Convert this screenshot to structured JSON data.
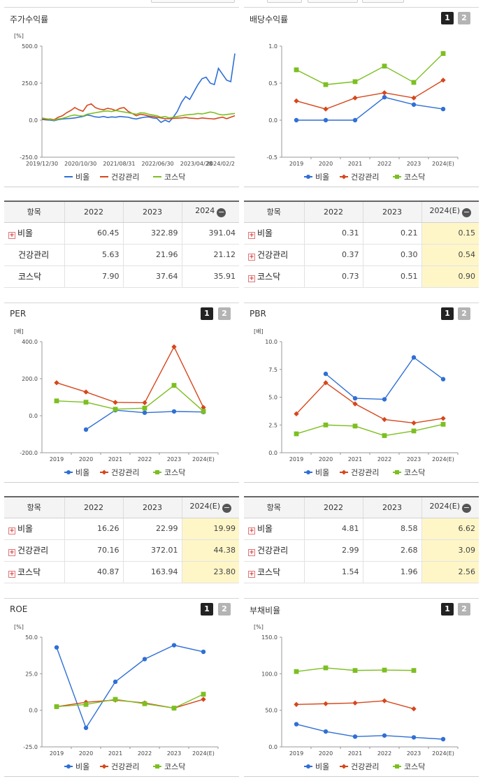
{
  "panels": [
    {
      "id": "stock-return",
      "title": "주가수익률",
      "toggles": [],
      "unit": "[%]"
    },
    {
      "id": "dividend",
      "title": "배당수익률",
      "toggles": [
        "1",
        "2"
      ],
      "unit": ""
    },
    {
      "id": "per",
      "title": "PER",
      "toggles": [
        "1",
        "2"
      ],
      "unit": "[배]"
    },
    {
      "id": "pbr",
      "title": "PBR",
      "toggles": [
        "1",
        "2"
      ],
      "unit": "[배]"
    },
    {
      "id": "roe",
      "title": "ROE",
      "toggles": [
        "1",
        "2"
      ],
      "unit": "[%]"
    },
    {
      "id": "debt",
      "title": "부채비율",
      "toggles": [
        "1",
        "2"
      ],
      "unit": "[%]"
    }
  ],
  "legend": [
    "비올",
    "건강관리",
    "코스닥"
  ],
  "colors": {
    "biol": "#2f6fd6",
    "health": "#d6471c",
    "kosdaq": "#7cbf21"
  },
  "tables": [
    {
      "id": "t1",
      "head": [
        "항목",
        "2022",
        "2023",
        "2024"
      ],
      "rows": [
        [
          "비올",
          "60.45",
          "322.89",
          "391.04"
        ],
        [
          "건강관리",
          "5.63",
          "21.96",
          "21.12"
        ],
        [
          "코스닥",
          "7.90",
          "37.64",
          "35.91"
        ]
      ],
      "plus": [
        true,
        false,
        false
      ],
      "highlight": false
    },
    {
      "id": "t2",
      "head": [
        "항목",
        "2022",
        "2023",
        "2024(E)"
      ],
      "rows": [
        [
          "비올",
          "0.31",
          "0.21",
          "0.15"
        ],
        [
          "건강관리",
          "0.37",
          "0.30",
          "0.54"
        ],
        [
          "코스닥",
          "0.73",
          "0.51",
          "0.90"
        ]
      ],
      "plus": [
        true,
        true,
        true
      ],
      "highlight": true
    },
    {
      "id": "t3",
      "head": [
        "항목",
        "2022",
        "2023",
        "2024(E)"
      ],
      "rows": [
        [
          "비올",
          "16.26",
          "22.99",
          "19.99"
        ],
        [
          "건강관리",
          "70.16",
          "372.01",
          "44.38"
        ],
        [
          "코스닥",
          "40.87",
          "163.94",
          "23.80"
        ]
      ],
      "plus": [
        true,
        true,
        true
      ],
      "highlight": true
    },
    {
      "id": "t4",
      "head": [
        "항목",
        "2022",
        "2023",
        "2024(E)"
      ],
      "rows": [
        [
          "비올",
          "4.81",
          "8.58",
          "6.62"
        ],
        [
          "건강관리",
          "2.99",
          "2.68",
          "3.09"
        ],
        [
          "코스닥",
          "1.54",
          "1.96",
          "2.56"
        ]
      ],
      "plus": [
        true,
        true,
        true
      ],
      "highlight": true
    }
  ],
  "chart_data": [
    {
      "type": "line",
      "title": "주가수익률",
      "ylabel": "[%]",
      "ylim": [
        -250,
        500
      ],
      "yticks": [
        "500.0",
        "250.0",
        "0.0",
        "-250.0"
      ],
      "xticks": [
        "2019/12/30",
        "2020/10/30",
        "2021/08/31",
        "2022/06/30",
        "2023/04/28",
        "2024/02/2"
      ],
      "series": [
        {
          "name": "비올",
          "values": [
            5,
            2,
            0,
            -4,
            4,
            8,
            10,
            12,
            15,
            20,
            25,
            35,
            30,
            22,
            20,
            25,
            18,
            22,
            20,
            25,
            22,
            20,
            12,
            8,
            15,
            20,
            22,
            15,
            12,
            -15,
            0,
            -12,
            20,
            60,
            120,
            160,
            140,
            190,
            240,
            280,
            290,
            250,
            240,
            350,
            310,
            270,
            260,
            450
          ]
        },
        {
          "name": "건강관리",
          "values": [
            10,
            5,
            8,
            3,
            20,
            30,
            50,
            65,
            85,
            70,
            60,
            100,
            110,
            85,
            75,
            70,
            80,
            75,
            65,
            80,
            85,
            60,
            45,
            30,
            40,
            35,
            28,
            25,
            20,
            15,
            10,
            10,
            12,
            14,
            15,
            18,
            14,
            12,
            10,
            15,
            12,
            10,
            8,
            15,
            20,
            10,
            20,
            30
          ]
        },
        {
          "name": "코스닥",
          "values": [
            15,
            10,
            5,
            0,
            8,
            12,
            20,
            30,
            35,
            30,
            28,
            40,
            45,
            50,
            55,
            60,
            62,
            58,
            65,
            60,
            55,
            50,
            45,
            40,
            50,
            48,
            40,
            35,
            30,
            20,
            25,
            15,
            20,
            25,
            30,
            35,
            38,
            40,
            45,
            42,
            48,
            55,
            50,
            40,
            35,
            38,
            42,
            45
          ]
        }
      ]
    },
    {
      "type": "line",
      "title": "배당수익률",
      "ylim": [
        -0.5,
        1.0
      ],
      "yticks": [
        "1.0",
        "0.5",
        "0.0",
        "-0.5"
      ],
      "categories": [
        "2019",
        "2020",
        "2021",
        "2022",
        "2023",
        "2024(E)"
      ],
      "series": [
        {
          "name": "비올",
          "values": [
            0.0,
            0.0,
            0.0,
            0.31,
            0.21,
            0.15
          ]
        },
        {
          "name": "건강관리",
          "values": [
            0.26,
            0.15,
            0.3,
            0.37,
            0.3,
            0.54
          ]
        },
        {
          "name": "코스닥",
          "values": [
            0.68,
            0.48,
            0.52,
            0.73,
            0.51,
            0.9
          ]
        }
      ]
    },
    {
      "type": "line",
      "title": "PER",
      "ylabel": "[배]",
      "ylim": [
        -200,
        400
      ],
      "yticks": [
        "400.0",
        "200.0",
        "0.0",
        "-200.0"
      ],
      "categories": [
        "2019",
        "2020",
        "2021",
        "2022",
        "2023",
        "2024(E)"
      ],
      "series": [
        {
          "name": "비올",
          "values": [
            null,
            -75,
            30,
            16.26,
            22.99,
            19.99
          ]
        },
        {
          "name": "건강관리",
          "values": [
            178,
            128,
            72,
            70.16,
            372.01,
            44.38
          ]
        },
        {
          "name": "코스닥",
          "values": [
            80,
            73,
            35,
            40.87,
            163.94,
            23.8
          ]
        }
      ]
    },
    {
      "type": "line",
      "title": "PBR",
      "ylabel": "[배]",
      "ylim": [
        0,
        10
      ],
      "yticks": [
        "10.0",
        "7.5",
        "5.0",
        "2.5",
        "0.0"
      ],
      "categories": [
        "2019",
        "2020",
        "2021",
        "2022",
        "2023",
        "2024(E)"
      ],
      "series": [
        {
          "name": "비올",
          "values": [
            null,
            7.1,
            4.9,
            4.81,
            8.58,
            6.62
          ]
        },
        {
          "name": "건강관리",
          "values": [
            3.5,
            6.3,
            4.4,
            2.99,
            2.68,
            3.09
          ]
        },
        {
          "name": "코스닥",
          "values": [
            1.7,
            2.5,
            2.4,
            1.54,
            1.96,
            2.56
          ]
        }
      ]
    },
    {
      "type": "line",
      "title": "ROE",
      "ylabel": "[%]",
      "ylim": [
        -25,
        50
      ],
      "yticks": [
        "50.0",
        "25.0",
        "0.0",
        "-25.0"
      ],
      "categories": [
        "2019",
        "2020",
        "2021",
        "2022",
        "2023",
        "2024(E)"
      ],
      "series": [
        {
          "name": "비올",
          "values": [
            43,
            -12,
            19.5,
            35,
            44.5,
            40
          ]
        },
        {
          "name": "건강관리",
          "values": [
            2.5,
            5.5,
            7,
            5,
            1.5,
            7.5
          ]
        },
        {
          "name": "코스닥",
          "values": [
            2.5,
            4,
            7.5,
            4.5,
            1.5,
            11
          ]
        }
      ]
    },
    {
      "type": "line",
      "title": "부채비율",
      "ylabel": "[%]",
      "ylim": [
        0,
        150
      ],
      "yticks": [
        "150.0",
        "100.0",
        "50.0",
        "0.0"
      ],
      "categories": [
        "2019",
        "2020",
        "2021",
        "2022",
        "2023",
        "2024(E)"
      ],
      "series": [
        {
          "name": "비올",
          "values": [
            31,
            21,
            14,
            15.5,
            13,
            10.5
          ]
        },
        {
          "name": "건강관리",
          "values": [
            58,
            59,
            60,
            63,
            52,
            null
          ]
        },
        {
          "name": "코스닥",
          "values": [
            103,
            108,
            104.5,
            105,
            104.5,
            null
          ]
        }
      ]
    }
  ]
}
